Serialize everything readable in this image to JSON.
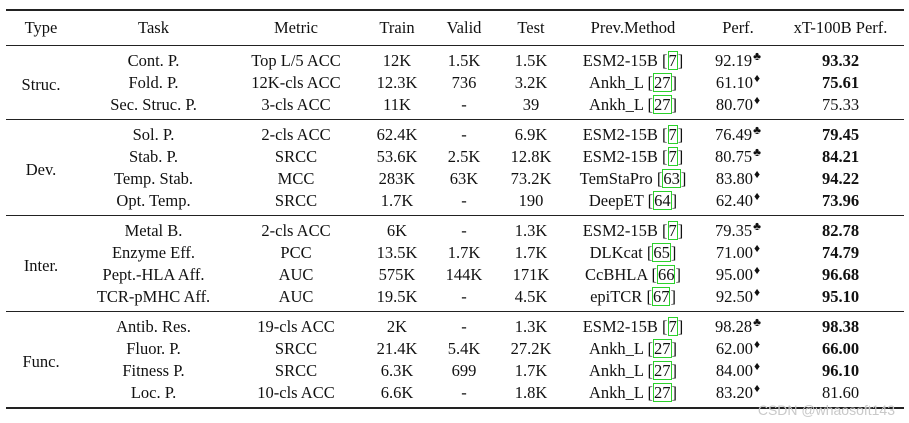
{
  "headers": [
    "Type",
    "Task",
    "Metric",
    "Train",
    "Valid",
    "Test",
    "Prev.Method",
    "Perf.",
    "xT-100B Perf."
  ],
  "groups": [
    {
      "type": "Struc.",
      "rows": [
        {
          "task": "Cont. P.",
          "metric": "Top L/5 ACC",
          "train": "12K",
          "valid": "1.5K",
          "test": "1.5K",
          "method": "ESM2-15B",
          "ref": "7",
          "perf": "92.19",
          "sym": "♣",
          "xt": "93.32",
          "bold": true
        },
        {
          "task": "Fold. P.",
          "metric": "12K-cls ACC",
          "train": "12.3K",
          "valid": "736",
          "test": "3.2K",
          "method": "Ankh_L",
          "ref": "27",
          "perf": "61.10",
          "sym": "♦",
          "xt": "75.61",
          "bold": true
        },
        {
          "task": "Sec. Struc. P.",
          "metric": "3-cls ACC",
          "train": "11K",
          "valid": "-",
          "test": "39",
          "method": "Ankh_L",
          "ref": "27",
          "perf": "80.70",
          "sym": "♦",
          "xt": "75.33",
          "bold": false
        }
      ]
    },
    {
      "type": "Dev.",
      "rows": [
        {
          "task": "Sol. P.",
          "metric": "2-cls ACC",
          "train": "62.4K",
          "valid": "-",
          "test": "6.9K",
          "method": "ESM2-15B",
          "ref": "7",
          "perf": "76.49",
          "sym": "♣",
          "xt": "79.45",
          "bold": true
        },
        {
          "task": "Stab. P.",
          "metric": "SRCC",
          "train": "53.6K",
          "valid": "2.5K",
          "test": "12.8K",
          "method": "ESM2-15B",
          "ref": "7",
          "perf": "80.75",
          "sym": "♣",
          "xt": "84.21",
          "bold": true
        },
        {
          "task": "Temp. Stab.",
          "metric": "MCC",
          "train": "283K",
          "valid": "63K",
          "test": "73.2K",
          "method": "TemStaPro",
          "ref": "63",
          "perf": "83.80",
          "sym": "♦",
          "xt": "94.22",
          "bold": true
        },
        {
          "task": "Opt. Temp.",
          "metric": "SRCC",
          "train": "1.7K",
          "valid": "-",
          "test": "190",
          "method": "DeepET",
          "ref": "64",
          "perf": "62.40",
          "sym": "♦",
          "xt": "73.96",
          "bold": true
        }
      ]
    },
    {
      "type": "Inter.",
      "rows": [
        {
          "task": "Metal B.",
          "metric": "2-cls ACC",
          "train": "6K",
          "valid": "-",
          "test": "1.3K",
          "method": "ESM2-15B",
          "ref": "7",
          "perf": "79.35",
          "sym": "♣",
          "xt": "82.78",
          "bold": true
        },
        {
          "task": "Enzyme Eff.",
          "metric": "PCC",
          "train": "13.5K",
          "valid": "1.7K",
          "test": "1.7K",
          "method": "DLKcat",
          "ref": "65",
          "perf": "71.00",
          "sym": "♦",
          "xt": "74.79",
          "bold": true
        },
        {
          "task": "Pept.-HLA Aff.",
          "metric": "AUC",
          "train": "575K",
          "valid": "144K",
          "test": "171K",
          "method": "CcBHLA",
          "ref": "66",
          "perf": "95.00",
          "sym": "♦",
          "xt": "96.68",
          "bold": true
        },
        {
          "task": "TCR-pMHC Aff.",
          "metric": "AUC",
          "train": "19.5K",
          "valid": "-",
          "test": "4.5K",
          "method": "epiTCR",
          "ref": "67",
          "perf": "92.50",
          "sym": "♦",
          "xt": "95.10",
          "bold": true
        }
      ]
    },
    {
      "type": "Func.",
      "rows": [
        {
          "task": "Antib. Res.",
          "metric": "19-cls ACC",
          "train": "2K",
          "valid": "-",
          "test": "1.3K",
          "method": "ESM2-15B",
          "ref": "7",
          "perf": "98.28",
          "sym": "♣",
          "xt": "98.38",
          "bold": true
        },
        {
          "task": "Fluor. P.",
          "metric": "SRCC",
          "train": "21.4K",
          "valid": "5.4K",
          "test": "27.2K",
          "method": "Ankh_L",
          "ref": "27",
          "perf": "62.00",
          "sym": "♦",
          "xt": "66.00",
          "bold": true
        },
        {
          "task": "Fitness P.",
          "metric": "SRCC",
          "train": "6.3K",
          "valid": "699",
          "test": "1.7K",
          "method": "Ankh_L",
          "ref": "27",
          "perf": "84.00",
          "sym": "♦",
          "xt": "96.10",
          "bold": true
        },
        {
          "task": "Loc. P.",
          "metric": "10-cls ACC",
          "train": "6.6K",
          "valid": "-",
          "test": "1.8K",
          "method": "Ankh_L",
          "ref": "27",
          "perf": "83.20",
          "sym": "♦",
          "xt": "81.60",
          "bold": false
        }
      ]
    }
  ],
  "watermark": "CSDN @whaosoft143"
}
